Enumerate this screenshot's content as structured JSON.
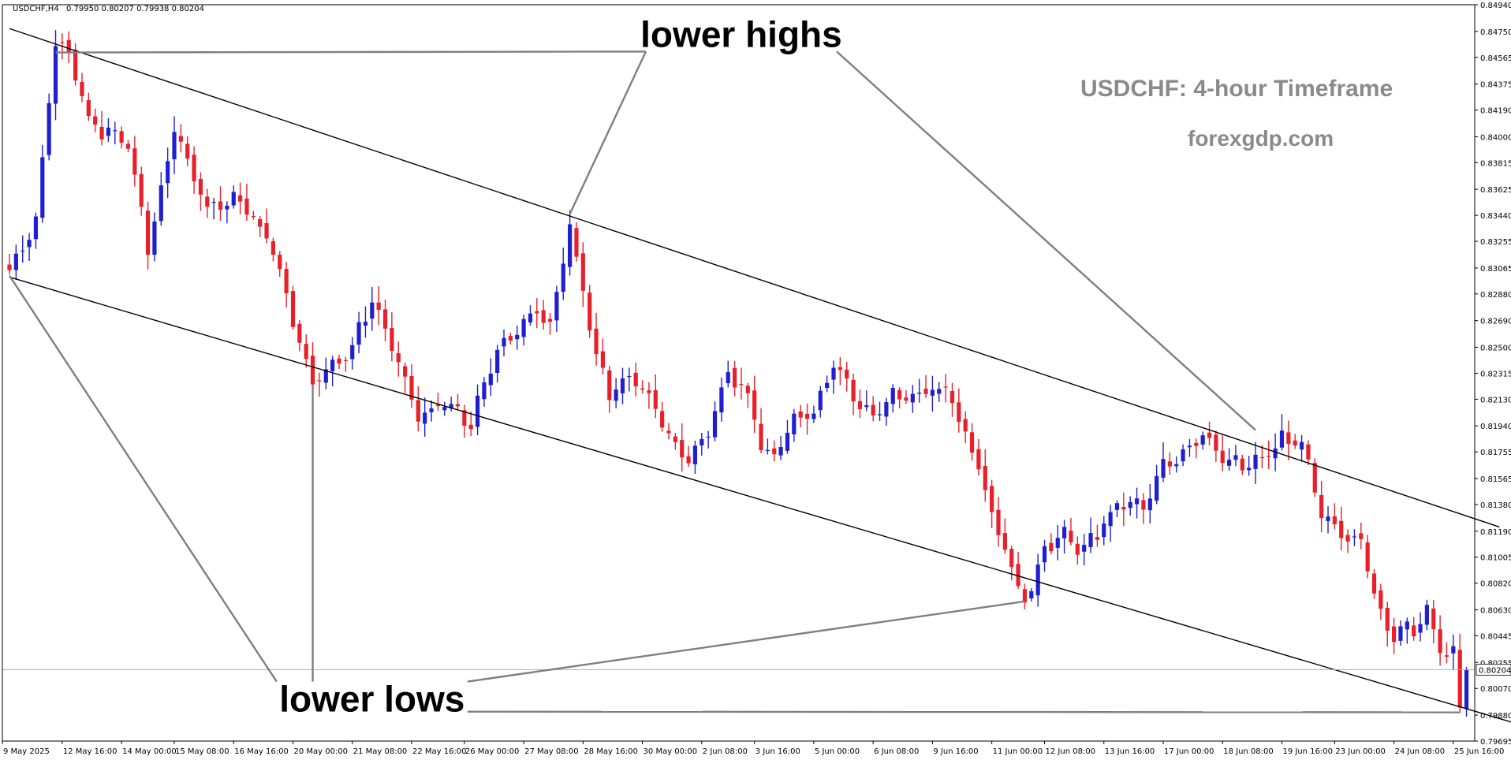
{
  "header": {
    "symbol": "USDCHF,H4",
    "ohlc": "0.79950 0.80207 0.79938 0.80204"
  },
  "watermark": {
    "title": "USDCHF: 4-hour Timeframe",
    "site": "forexgdp.com"
  },
  "colors": {
    "bull": "#1f1fd0",
    "bear": "#e8202a",
    "trendline": "#000000",
    "annotation_line": "#7f7f7f",
    "price_line": "#9fb3c4",
    "price_label_bg": "#ffffff"
  },
  "chart_data": {
    "type": "candlestick",
    "ylim": [
      0.79695,
      0.8494
    ],
    "y_ticks": [
      "0.84940",
      "0.84750",
      "0.84565",
      "0.84375",
      "0.84190",
      "0.84000",
      "0.83815",
      "0.83625",
      "0.83440",
      "0.83255",
      "0.83065",
      "0.82880",
      "0.82690",
      "0.82500",
      "0.82315",
      "0.82130",
      "0.81940",
      "0.81755",
      "0.81565",
      "0.81380",
      "0.81190",
      "0.81005",
      "0.80820",
      "0.80630",
      "0.80445",
      "0.80255",
      "0.80070",
      "0.79880",
      "0.79695"
    ],
    "current_price": "0.80204",
    "x_ticks": [
      "9 May 2025",
      "12 May 16:00",
      "14 May 00:00",
      "15 May 08:00",
      "16 May 16:00",
      "20 May 00:00",
      "21 May 08:00",
      "22 May 16:00",
      "26 May 00:00",
      "27 May 08:00",
      "28 May 16:00",
      "30 May 00:00",
      "2 Jun 08:00",
      "3 Jun 16:00",
      "5 Jun 00:00",
      "6 Jun 08:00",
      "9 Jun 16:00",
      "11 Jun 00:00",
      "12 Jun 08:00",
      "13 Jun 16:00",
      "17 Jun 00:00",
      "18 Jun 08:00",
      "19 Jun 16:00",
      "23 Jun 00:00",
      "24 Jun 08:00",
      "25 Jun 16:00"
    ],
    "anchors": [
      [
        0,
        0.8305
      ],
      [
        4,
        0.834
      ],
      [
        7,
        0.847
      ],
      [
        9,
        0.846
      ],
      [
        12,
        0.841
      ],
      [
        18,
        0.8395
      ],
      [
        21,
        0.832
      ],
      [
        25,
        0.8405
      ],
      [
        30,
        0.835
      ],
      [
        35,
        0.8355
      ],
      [
        40,
        0.832
      ],
      [
        43,
        0.827
      ],
      [
        46,
        0.8225
      ],
      [
        52,
        0.825
      ],
      [
        55,
        0.8285
      ],
      [
        58,
        0.825
      ],
      [
        62,
        0.82
      ],
      [
        66,
        0.821
      ],
      [
        70,
        0.8195
      ],
      [
        74,
        0.825
      ],
      [
        78,
        0.8265
      ],
      [
        80,
        0.828
      ],
      [
        82,
        0.8265
      ],
      [
        85,
        0.8335
      ],
      [
        87,
        0.829
      ],
      [
        89,
        0.8245
      ],
      [
        91,
        0.8215
      ],
      [
        94,
        0.823
      ],
      [
        97,
        0.8215
      ],
      [
        100,
        0.8185
      ],
      [
        103,
        0.817
      ],
      [
        106,
        0.819
      ],
      [
        109,
        0.8235
      ],
      [
        112,
        0.8215
      ],
      [
        114,
        0.818
      ],
      [
        116,
        0.817
      ],
      [
        119,
        0.82
      ],
      [
        122,
        0.8205
      ],
      [
        125,
        0.824
      ],
      [
        128,
        0.8215
      ],
      [
        131,
        0.82
      ],
      [
        134,
        0.8215
      ],
      [
        137,
        0.8215
      ],
      [
        140,
        0.822
      ],
      [
        143,
        0.8215
      ],
      [
        145,
        0.8185
      ],
      [
        147,
        0.817
      ],
      [
        149,
        0.813
      ],
      [
        151,
        0.811
      ],
      [
        153,
        0.8075
      ],
      [
        155,
        0.8075
      ],
      [
        157,
        0.811
      ],
      [
        160,
        0.8115
      ],
      [
        163,
        0.8105
      ],
      [
        166,
        0.8125
      ],
      [
        169,
        0.814
      ],
      [
        172,
        0.8135
      ],
      [
        175,
        0.8165
      ],
      [
        178,
        0.8175
      ],
      [
        181,
        0.819
      ],
      [
        184,
        0.817
      ],
      [
        187,
        0.8165
      ],
      [
        190,
        0.817
      ],
      [
        193,
        0.8185
      ],
      [
        196,
        0.818
      ],
      [
        199,
        0.813
      ],
      [
        202,
        0.812
      ],
      [
        205,
        0.811
      ],
      [
        208,
        0.806
      ],
      [
        210,
        0.8045
      ],
      [
        213,
        0.805
      ],
      [
        215,
        0.806
      ],
      [
        217,
        0.8035
      ],
      [
        219,
        0.803
      ],
      [
        220,
        0.7993
      ],
      [
        221,
        0.802
      ]
    ],
    "trendlines": [
      {
        "name": "upper-channel",
        "points": [
          [
            0,
            0.8477
          ],
          [
            226,
            0.8122
          ]
        ]
      },
      {
        "name": "lower-channel",
        "points": [
          [
            0,
            0.83
          ],
          [
            230,
            0.798
          ]
        ]
      }
    ],
    "annotations": [
      {
        "text": "lower highs",
        "x": 111,
        "price": 0.8473,
        "targets": [
          [
            7,
            0.846
          ],
          [
            85,
            0.8345
          ],
          [
            189,
            0.8191
          ]
        ]
      },
      {
        "text": "lower lows",
        "x": 55,
        "price": 0.79995,
        "targets": [
          [
            0,
            0.8301
          ],
          [
            46,
            0.8223
          ],
          [
            154,
            0.8069
          ],
          [
            220,
            0.799
          ]
        ]
      }
    ]
  }
}
